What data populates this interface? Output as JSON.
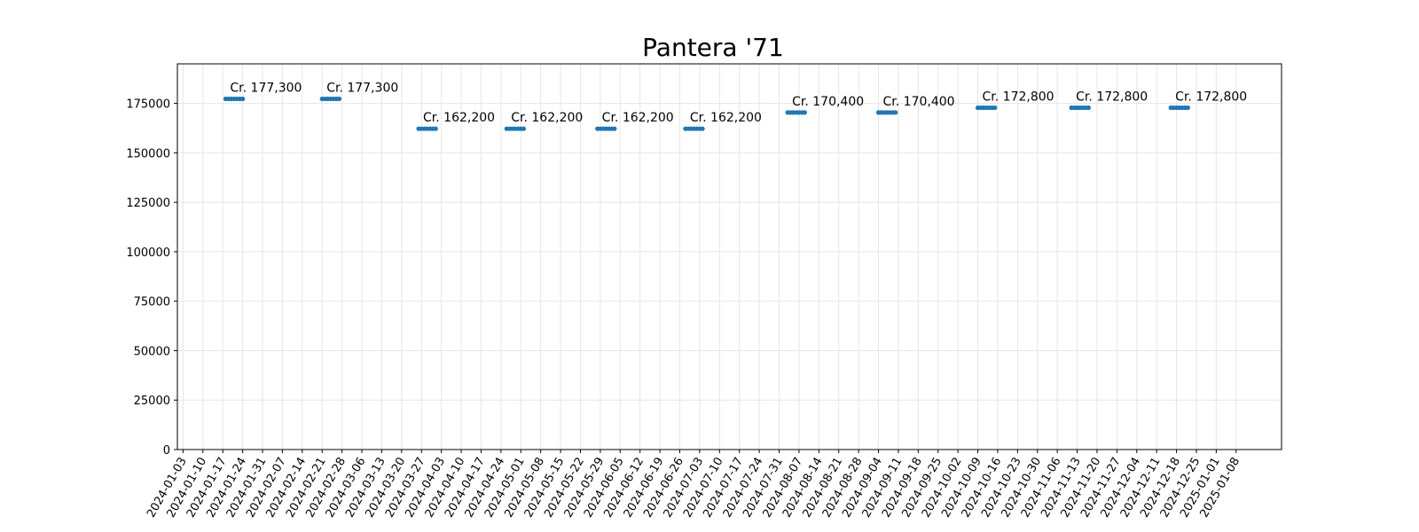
{
  "chart_data": {
    "type": "scatter",
    "title": "Pantera '71",
    "xlabel": "",
    "ylabel": "",
    "ylim": [
      0,
      195000
    ],
    "yticks": [
      0,
      25000,
      50000,
      75000,
      100000,
      125000,
      150000,
      175000
    ],
    "xlim": [
      "2024-01-01",
      "2025-01-24"
    ],
    "xticks": [
      "2024-01-03",
      "2024-01-10",
      "2024-01-17",
      "2024-01-24",
      "2024-01-31",
      "2024-02-07",
      "2024-02-14",
      "2024-02-21",
      "2024-02-28",
      "2024-03-06",
      "2024-03-13",
      "2024-03-20",
      "2024-03-27",
      "2024-04-03",
      "2024-04-10",
      "2024-04-17",
      "2024-04-24",
      "2024-05-01",
      "2024-05-08",
      "2024-05-15",
      "2024-05-22",
      "2024-05-29",
      "2024-06-05",
      "2024-06-12",
      "2024-06-19",
      "2024-06-26",
      "2024-07-03",
      "2024-07-10",
      "2024-07-17",
      "2024-07-24",
      "2024-07-31",
      "2024-08-07",
      "2024-08-14",
      "2024-08-21",
      "2024-08-28",
      "2024-09-04",
      "2024-09-11",
      "2024-09-18",
      "2024-09-25",
      "2024-10-02",
      "2024-10-09",
      "2024-10-16",
      "2024-10-23",
      "2024-10-30",
      "2024-11-06",
      "2024-11-13",
      "2024-11-20",
      "2024-11-27",
      "2024-12-04",
      "2024-12-11",
      "2024-12-18",
      "2024-12-25",
      "2025-01-01",
      "2025-01-08"
    ],
    "grid": true,
    "color": "#1f77b4",
    "series": [
      {
        "values": [
          {
            "start": "2024-01-18",
            "end": "2024-01-24",
            "y": 177300,
            "label": "Cr. 177,300"
          },
          {
            "start": "2024-02-21",
            "end": "2024-02-27",
            "y": 177300,
            "label": "Cr. 177,300"
          },
          {
            "start": "2024-03-26",
            "end": "2024-04-01",
            "y": 162200,
            "label": "Cr. 162,200"
          },
          {
            "start": "2024-04-26",
            "end": "2024-05-02",
            "y": 162200,
            "label": "Cr. 162,200"
          },
          {
            "start": "2024-05-28",
            "end": "2024-06-03",
            "y": 162200,
            "label": "Cr. 162,200"
          },
          {
            "start": "2024-06-28",
            "end": "2024-07-04",
            "y": 162200,
            "label": "Cr. 162,200"
          },
          {
            "start": "2024-08-03",
            "end": "2024-08-09",
            "y": 170400,
            "label": "Cr. 170,400"
          },
          {
            "start": "2024-09-04",
            "end": "2024-09-10",
            "y": 170400,
            "label": "Cr. 170,400"
          },
          {
            "start": "2024-10-09",
            "end": "2024-10-15",
            "y": 172800,
            "label": "Cr. 172,800"
          },
          {
            "start": "2024-11-11",
            "end": "2024-11-17",
            "y": 172800,
            "label": "Cr. 172,800"
          },
          {
            "start": "2024-12-16",
            "end": "2024-12-22",
            "y": 172800,
            "label": "Cr. 172,800"
          }
        ]
      }
    ]
  }
}
